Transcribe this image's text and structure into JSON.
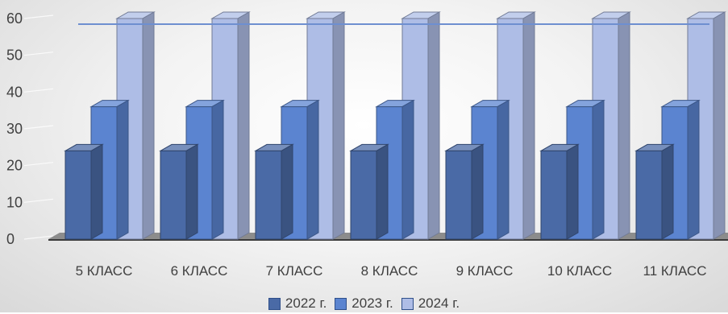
{
  "chart_data": {
    "type": "bar",
    "categories": [
      "5 КЛАСС",
      "6 КЛАСС",
      "7 КЛАСС",
      "8 КЛАСС",
      "9 КЛАСС",
      "10 КЛАСС",
      "11 КЛАСС"
    ],
    "series": [
      {
        "name": "2022 г.",
        "values": [
          24,
          24,
          24,
          24,
          24,
          24,
          24
        ],
        "color": "#4a6aa6"
      },
      {
        "name": "2023 г.",
        "values": [
          36,
          36,
          36,
          36,
          36,
          36,
          36
        ],
        "color": "#5b84d0"
      },
      {
        "name": "2024 г.",
        "values": [
          60,
          60,
          60,
          60,
          60,
          60,
          60
        ],
        "color": "#aebde6"
      }
    ],
    "yticks": [
      "0",
      "10",
      "20",
      "30",
      "40",
      "50",
      "60"
    ],
    "ylim": [
      0,
      60
    ],
    "legend_position": "bottom",
    "grid": false
  }
}
